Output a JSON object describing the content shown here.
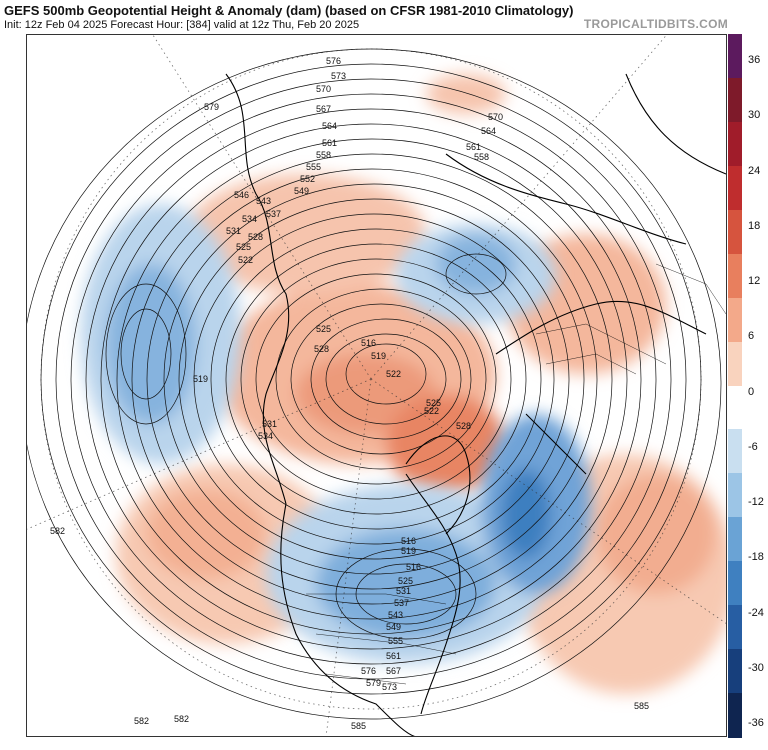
{
  "header": {
    "title": "GEFS 500mb Geopotential Height & Anomaly (dam) (based on CFSR 1981-2010 Climatology)",
    "subtitle": "Init: 12z Feb 04 2025   Forecast Hour: [384]   valid at 12z Thu, Feb 20 2025",
    "credit": "TROPICALTIDBITS.COM"
  },
  "colorbar": {
    "ticks": [
      "36",
      "30",
      "24",
      "18",
      "12",
      "6",
      "0",
      "-6",
      "-12",
      "-18",
      "-24",
      "-30",
      "-36"
    ],
    "colors": [
      "#5c1a5e",
      "#7e1a2a",
      "#a01c2a",
      "#bf2d2e",
      "#d6543e",
      "#e87f5e",
      "#f3a98a",
      "#f9d3be",
      "#ffffff",
      "#c9dff0",
      "#9cc5e6",
      "#6aa3d5",
      "#3f80c0",
      "#275ea3",
      "#173f7c",
      "#0f2550"
    ]
  },
  "contour_labels": [
    {
      "text": "576"
    },
    {
      "text": "573"
    },
    {
      "text": "570"
    },
    {
      "text": "567"
    },
    {
      "text": "564"
    },
    {
      "text": "561"
    },
    {
      "text": "558"
    },
    {
      "text": "555"
    },
    {
      "text": "552"
    },
    {
      "text": "549"
    },
    {
      "text": "546"
    },
    {
      "text": "543"
    },
    {
      "text": "537"
    },
    {
      "text": "534"
    },
    {
      "text": "531"
    },
    {
      "text": "528"
    },
    {
      "text": "525"
    },
    {
      "text": "522"
    },
    {
      "text": "579"
    },
    {
      "text": "519"
    },
    {
      "text": "525"
    },
    {
      "text": "528"
    },
    {
      "text": "516"
    },
    {
      "text": "519"
    },
    {
      "text": "522"
    },
    {
      "text": "522"
    },
    {
      "text": "525"
    },
    {
      "text": "528"
    },
    {
      "text": "531"
    },
    {
      "text": "534"
    },
    {
      "text": "570"
    },
    {
      "text": "564"
    },
    {
      "text": "561"
    },
    {
      "text": "558"
    },
    {
      "text": "582"
    },
    {
      "text": "516"
    },
    {
      "text": "519"
    },
    {
      "text": "516"
    },
    {
      "text": "525"
    },
    {
      "text": "531"
    },
    {
      "text": "537"
    },
    {
      "text": "543"
    },
    {
      "text": "549"
    },
    {
      "text": "555"
    },
    {
      "text": "561"
    },
    {
      "text": "567"
    },
    {
      "text": "573"
    },
    {
      "text": "576"
    },
    {
      "text": "579"
    },
    {
      "text": "582"
    },
    {
      "text": "585"
    },
    {
      "text": "582"
    },
    {
      "text": "585"
    }
  ]
}
